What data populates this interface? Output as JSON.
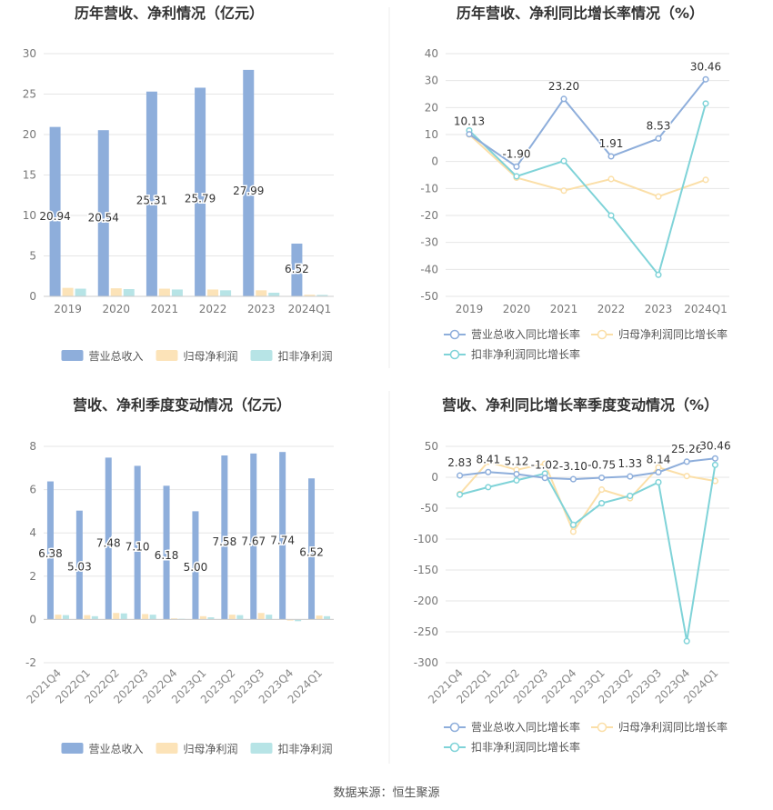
{
  "source": "数据来源：恒生聚源",
  "colors": {
    "revenue": "#8eaedb",
    "parent_profit": "#fce3b8",
    "deducted_profit": "#b7e4e6",
    "revenue_line": "#8eaedb",
    "parent_line": "#fbdfa8",
    "deducted_line": "#7fd3d8"
  },
  "chart_data": [
    {
      "type": "bar",
      "title": "历年营收、净利情况（亿元）",
      "categories": [
        "2019",
        "2020",
        "2021",
        "2022",
        "2023",
        "2024Q1"
      ],
      "ylim": [
        0,
        30
      ],
      "yticks": [
        0,
        5,
        10,
        15,
        20,
        25,
        30
      ],
      "grid": true,
      "legend": "bottom",
      "series": [
        {
          "name": "营业总收入",
          "values": [
            20.94,
            20.54,
            25.31,
            25.79,
            27.99,
            6.52
          ],
          "labels": [
            "20.94",
            "20.54",
            "25.31",
            "25.79",
            "27.99",
            "6.52"
          ]
        },
        {
          "name": "归母净利润",
          "values": [
            1.05,
            1.0,
            0.95,
            0.85,
            0.75,
            0.2
          ]
        },
        {
          "name": "扣非净利润",
          "values": [
            0.95,
            0.9,
            0.85,
            0.75,
            0.45,
            0.18
          ]
        }
      ]
    },
    {
      "type": "line",
      "title": "历年营收、净利同比增长率情况（%）",
      "categories": [
        "2019",
        "2020",
        "2021",
        "2022",
        "2023",
        "2024Q1"
      ],
      "ylim": [
        -50,
        40
      ],
      "yticks": [
        -50,
        -40,
        -30,
        -20,
        -10,
        0,
        10,
        20,
        30,
        40
      ],
      "grid": true,
      "legend": "bottom",
      "series": [
        {
          "name": "营业总收入同比增长率",
          "values": [
            10.13,
            -1.9,
            23.2,
            1.91,
            8.53,
            30.46
          ],
          "labels": [
            "10.13",
            "-1.90",
            "23.20",
            "1.91",
            "8.53",
            "30.46"
          ]
        },
        {
          "name": "归母净利润同比增长率",
          "values": [
            10.0,
            -6.0,
            -10.8,
            -6.5,
            -13.0,
            -6.8
          ]
        },
        {
          "name": "扣非净利润同比增长率",
          "values": [
            11.5,
            -5.5,
            0.2,
            -20.0,
            -42.0,
            21.5
          ]
        }
      ]
    },
    {
      "type": "bar",
      "title": "营收、净利季度变动情况（亿元）",
      "categories": [
        "2021Q4",
        "2022Q1",
        "2022Q2",
        "2022Q3",
        "2022Q4",
        "2023Q1",
        "2023Q2",
        "2023Q3",
        "2023Q4",
        "2024Q1"
      ],
      "ylim": [
        -2,
        8
      ],
      "yticks": [
        -2,
        0,
        2,
        4,
        6,
        8
      ],
      "grid": true,
      "legend": "bottom",
      "series": [
        {
          "name": "营业总收入",
          "values": [
            6.38,
            5.03,
            7.48,
            7.1,
            6.18,
            5.0,
            7.58,
            7.67,
            7.74,
            6.52
          ],
          "labels": [
            "6.38",
            "5.03",
            "7.48",
            "7.10",
            "6.18",
            "5.00",
            "7.58",
            "7.67",
            "7.74",
            "6.52"
          ]
        },
        {
          "name": "归母净利润",
          "values": [
            0.22,
            0.2,
            0.3,
            0.25,
            0.05,
            0.15,
            0.22,
            0.3,
            -0.05,
            0.18
          ]
        },
        {
          "name": "扣非净利润",
          "values": [
            0.2,
            0.15,
            0.28,
            0.22,
            0.03,
            0.1,
            0.2,
            0.22,
            -0.08,
            0.15
          ]
        }
      ]
    },
    {
      "type": "line",
      "title": "营收、净利同比增长率季度变动情况（%）",
      "categories": [
        "2021Q4",
        "2022Q1",
        "2022Q2",
        "2022Q3",
        "2022Q4",
        "2023Q1",
        "2023Q2",
        "2023Q3",
        "2023Q4",
        "2024Q1"
      ],
      "ylim": [
        -300,
        50
      ],
      "yticks": [
        -300,
        -250,
        -200,
        -150,
        -100,
        -50,
        0,
        50
      ],
      "grid": true,
      "legend": "bottom",
      "series": [
        {
          "name": "营业总收入同比增长率",
          "values": [
            2.83,
            8.41,
            5.12,
            -1.02,
            -3.1,
            -0.75,
            1.33,
            8.14,
            25.26,
            30.46
          ],
          "labels": [
            "2.83",
            "8.41",
            "5.12",
            "-1.02",
            "-3.10",
            "-0.75",
            "1.33",
            "8.14",
            "25.26",
            "30.46"
          ]
        },
        {
          "name": "归母净利润同比增长率",
          "values": [
            -27,
            25,
            12,
            22,
            -88,
            -20,
            -34,
            16,
            2,
            -6
          ]
        },
        {
          "name": "扣非净利润同比增长率",
          "values": [
            -28,
            -16,
            -5,
            6,
            -77,
            -42,
            -30,
            -8,
            -265,
            20
          ]
        }
      ]
    }
  ]
}
